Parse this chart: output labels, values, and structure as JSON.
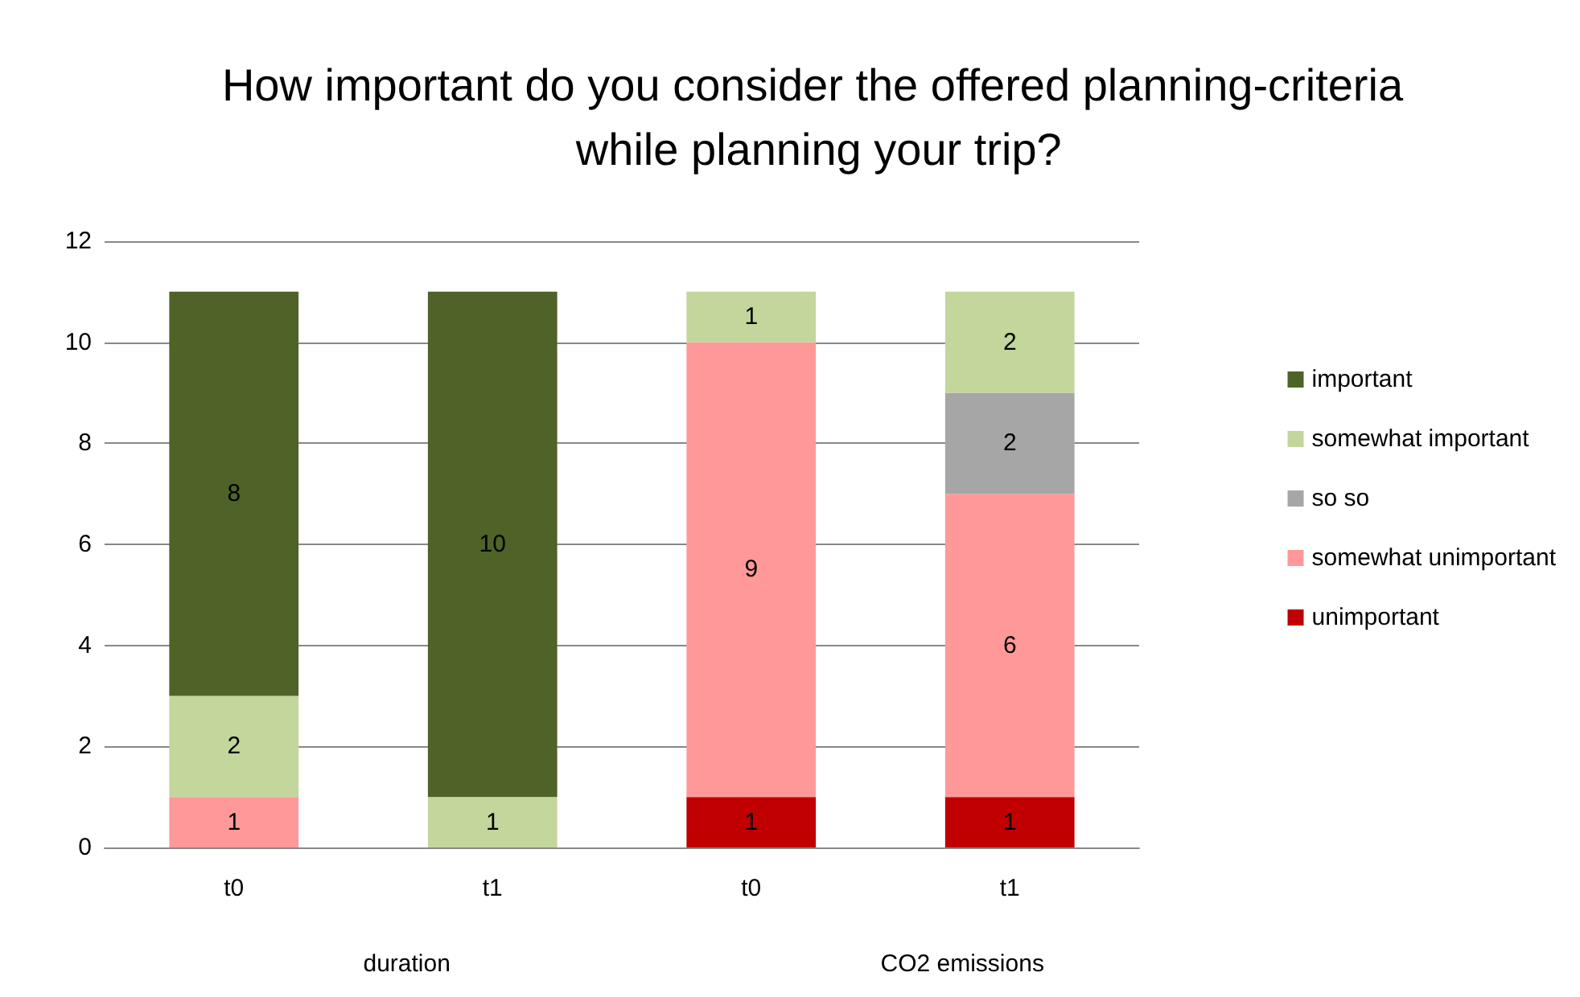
{
  "chart_data": {
    "type": "bar",
    "title": "How important do you consider the offered planning-criteria while planning your trip?",
    "categories": [
      "t0",
      "t1",
      "t0",
      "t1"
    ],
    "stacked": true,
    "data_labels": true,
    "grid": "y",
    "legend": "right",
    "ylim": [
      0,
      12
    ],
    "yticks": [
      0,
      2,
      4,
      6,
      8,
      10,
      12
    ],
    "series": [
      {
        "name": "unimportant",
        "color": "#c00000",
        "values": [
          null,
          null,
          1,
          1
        ]
      },
      {
        "name": "somewhat unimportant",
        "color": "#ff9999",
        "values": [
          1,
          null,
          9,
          6
        ]
      },
      {
        "name": "so so",
        "color": "#a6a6a6",
        "values": [
          null,
          null,
          null,
          2
        ]
      },
      {
        "name": "somewhat important",
        "color": "#c3d69b",
        "values": [
          2,
          1,
          1,
          2
        ]
      },
      {
        "name": "important",
        "color": "#4f6228",
        "values": [
          8,
          10,
          null,
          null
        ]
      }
    ],
    "annotations": [
      "duration",
      "CO2 emissions"
    ]
  }
}
